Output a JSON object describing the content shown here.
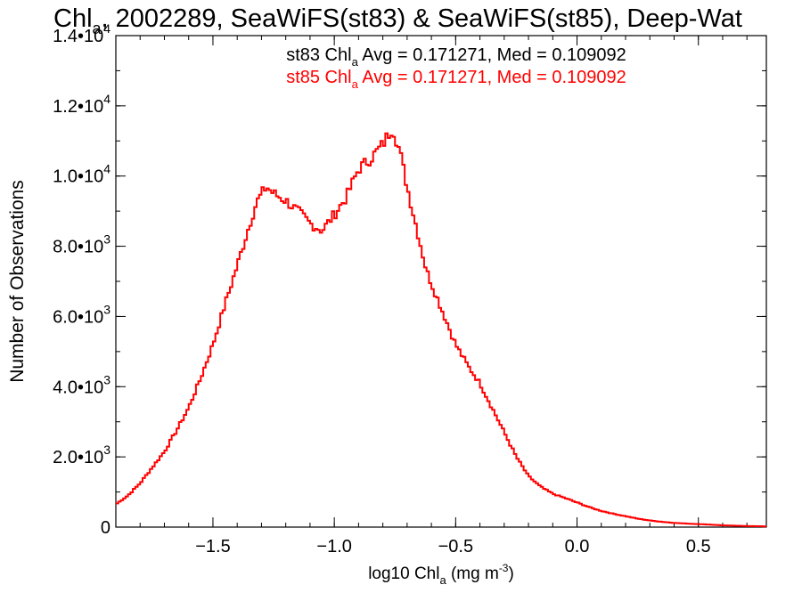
{
  "chart_data": {
    "type": "line",
    "title": {
      "part1": "Chl",
      "sub": "a",
      "part2": ", 2002289, SeaWiFS(st83) & SeaWiFS(st85), Deep-Wat"
    },
    "xlabel": {
      "pre": "log10 Chl",
      "sub": "a",
      "mid": " (mg m",
      "sup": "-3",
      "post": ")"
    },
    "ylabel": "Number of Observations",
    "xlim": [
      -1.9,
      0.78
    ],
    "ylim": [
      0,
      14000
    ],
    "x_ticks": [
      {
        "value": -1.5,
        "label": "−1.5"
      },
      {
        "value": -1.0,
        "label": "−1.0"
      },
      {
        "value": -0.5,
        "label": "−0.5"
      },
      {
        "value": 0.0,
        "label": "0.0"
      },
      {
        "value": 0.5,
        "label": "0.5"
      }
    ],
    "y_ticks": [
      {
        "value": 0,
        "mant": "0",
        "exp": ""
      },
      {
        "value": 2000,
        "mant": "2.0•10",
        "exp": "3"
      },
      {
        "value": 4000,
        "mant": "4.0•10",
        "exp": "3"
      },
      {
        "value": 6000,
        "mant": "6.0•10",
        "exp": "3"
      },
      {
        "value": 8000,
        "mant": "8.0•10",
        "exp": "3"
      },
      {
        "value": 10000,
        "mant": "1.0•10",
        "exp": "4"
      },
      {
        "value": 12000,
        "mant": "1.2•10",
        "exp": "4"
      },
      {
        "value": 14000,
        "mant": "1.4•10",
        "exp": "4"
      }
    ],
    "x_minor_step": 0.1,
    "y_minor_step": 1000,
    "annotations": [
      {
        "pre": "st83 Chl",
        "sub": "a",
        "post": " Avg = 0.171271, Med = 0.109092",
        "color": "#000000"
      },
      {
        "pre": "st85 Chl",
        "sub": "a",
        "post": " Avg = 0.171271, Med = 0.109092",
        "color": "#ff0000"
      }
    ],
    "series": [
      {
        "color": "#ff0000",
        "style": "step",
        "points": [
          [
            -1.9,
            650
          ],
          [
            -1.85,
            900
          ],
          [
            -1.8,
            1250
          ],
          [
            -1.75,
            1700
          ],
          [
            -1.7,
            2150
          ],
          [
            -1.65,
            2750
          ],
          [
            -1.6,
            3400
          ],
          [
            -1.55,
            4250
          ],
          [
            -1.5,
            5200
          ],
          [
            -1.45,
            6350
          ],
          [
            -1.4,
            7450
          ],
          [
            -1.35,
            8600
          ],
          [
            -1.32,
            9250
          ],
          [
            -1.28,
            9700
          ],
          [
            -1.25,
            9500
          ],
          [
            -1.2,
            9300
          ],
          [
            -1.15,
            9000
          ],
          [
            -1.1,
            8650
          ],
          [
            -1.05,
            8450
          ],
          [
            -1.0,
            8900
          ],
          [
            -0.95,
            9400
          ],
          [
            -0.9,
            10200
          ],
          [
            -0.85,
            10500
          ],
          [
            -0.8,
            10900
          ],
          [
            -0.76,
            11400
          ],
          [
            -0.73,
            10700
          ],
          [
            -0.7,
            9700
          ],
          [
            -0.66,
            8500
          ],
          [
            -0.62,
            7300
          ],
          [
            -0.58,
            6600
          ],
          [
            -0.54,
            5900
          ],
          [
            -0.5,
            5200
          ],
          [
            -0.45,
            4600
          ],
          [
            -0.4,
            4100
          ],
          [
            -0.35,
            3400
          ],
          [
            -0.3,
            2700
          ],
          [
            -0.25,
            2000
          ],
          [
            -0.2,
            1450
          ],
          [
            -0.15,
            1150
          ],
          [
            -0.1,
            950
          ],
          [
            -0.05,
            830
          ],
          [
            0.0,
            700
          ],
          [
            0.05,
            570
          ],
          [
            0.1,
            460
          ],
          [
            0.15,
            380
          ],
          [
            0.2,
            310
          ],
          [
            0.25,
            240
          ],
          [
            0.3,
            190
          ],
          [
            0.35,
            150
          ],
          [
            0.4,
            120
          ],
          [
            0.45,
            100
          ],
          [
            0.5,
            85
          ],
          [
            0.55,
            70
          ],
          [
            0.6,
            50
          ],
          [
            0.65,
            40
          ],
          [
            0.7,
            30
          ],
          [
            0.75,
            25
          ],
          [
            0.78,
            20
          ]
        ]
      }
    ]
  }
}
